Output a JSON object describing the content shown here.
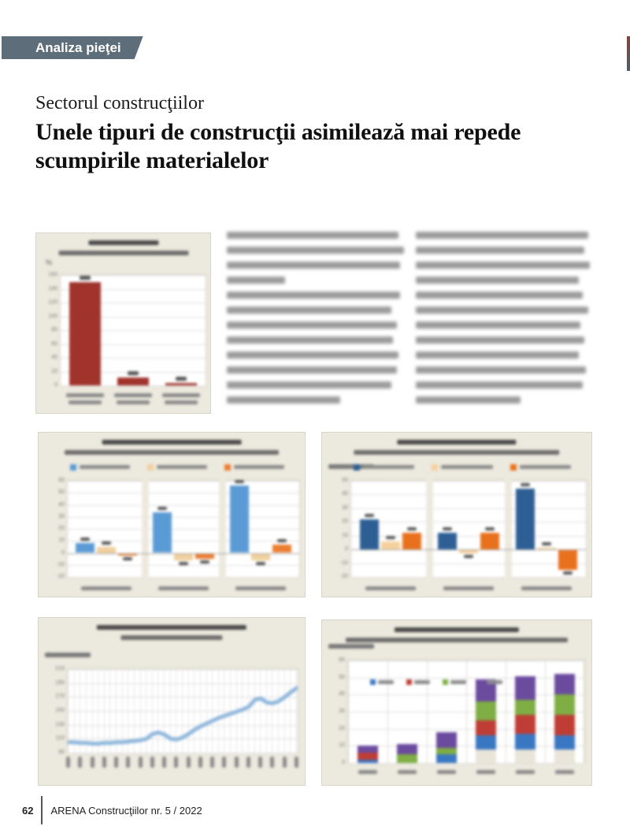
{
  "header": {
    "badge_label": "Analiza pieţei",
    "badge_bg": "#5d6e7a",
    "edge_marker_color": "#6a4a44"
  },
  "article": {
    "kicker": "Sectorul construcţiilor",
    "title": "Unele tipuri de construcţii asimilează mai repede scumpirile materialelor",
    "body_note": "two columns of body text are blurred/illegible in the source image"
  },
  "footer": {
    "page_number": "62",
    "magazine": "ARENA Construcţiilor nr. 5 / 2022"
  },
  "chart_data": [
    {
      "id": "construction-works-total",
      "type": "bar",
      "note": "title, category and data labels blurred/illegible; values estimated from gridlines",
      "ylabel": "%",
      "ylim": [
        0,
        160
      ],
      "yticks": [
        0,
        20,
        40,
        60,
        80,
        100,
        120,
        140,
        160
      ],
      "categories": [
        "",
        "",
        ""
      ],
      "values": [
        150,
        11,
        3
      ],
      "bar_color": "#a0332c",
      "card_bg": "#ece9de"
    },
    {
      "id": "grouped-bar-left",
      "type": "bar",
      "grouped": true,
      "note": "3 groups x 3 series; legend and labels blurred/illegible; values estimated",
      "ylim": [
        -20,
        60
      ],
      "yticks": [
        -20,
        -10,
        0,
        10,
        20,
        30,
        40,
        50,
        60
      ],
      "categories": [
        "",
        "",
        ""
      ],
      "series": [
        {
          "name": "",
          "color": "#5b9bd5",
          "values": [
            8,
            34,
            56
          ]
        },
        {
          "name": "",
          "color": "#f0d09e",
          "values": [
            5,
            -6,
            -6
          ]
        },
        {
          "name": "",
          "color": "#ed7d31",
          "values": [
            -2,
            -5,
            7
          ]
        }
      ],
      "legend_position": "top"
    },
    {
      "id": "grouped-bar-right",
      "type": "bar",
      "grouped": true,
      "note": "3 groups x 3 series; legend and labels blurred/illegible; values estimated",
      "ylabel": "%",
      "ylim": [
        -20,
        50
      ],
      "yticks": [
        -20,
        -10,
        0,
        10,
        20,
        30,
        40,
        50
      ],
      "categories": [
        "",
        "",
        ""
      ],
      "series": [
        {
          "name": "",
          "color": "#2e5f94",
          "values": [
            22,
            12,
            44
          ]
        },
        {
          "name": "",
          "color": "#f6d09c",
          "values": [
            6,
            -3,
            1
          ]
        },
        {
          "name": "",
          "color": "#e8711e",
          "values": [
            12,
            12,
            -15
          ]
        }
      ],
      "legend_position": "top"
    },
    {
      "id": "cost-index-line",
      "type": "line",
      "note": "monthly index line; axis labels rotated and blurred/illegible; values estimated",
      "ylim": [
        90,
        210
      ],
      "yticks": [
        90,
        110,
        130,
        150,
        170,
        190,
        210
      ],
      "line_color": "#8fb7dc",
      "values": [
        105,
        105,
        104,
        104,
        103,
        103,
        104,
        104,
        105,
        105,
        106,
        107,
        108,
        110,
        117,
        119,
        116,
        110,
        109,
        112,
        117,
        123,
        128,
        132,
        136,
        140,
        143,
        146,
        149,
        152,
        156,
        166,
        168,
        162,
        161,
        164,
        170,
        177,
        183
      ]
    },
    {
      "id": "stacked-bar-years",
      "type": "bar",
      "stacked": true,
      "note": "6 yearly stacked bars, 4-entry legend inside plot; labels blurred/illegible; values estimated",
      "ylim": [
        0,
        60
      ],
      "yticks": [
        0,
        10,
        20,
        30,
        40,
        50,
        60
      ],
      "categories": [
        "",
        "",
        "",
        "",
        "",
        ""
      ],
      "series": [
        {
          "name": "",
          "color": "#e9e5d9",
          "values": [
            0,
            0,
            0,
            8,
            8,
            8
          ]
        },
        {
          "name": "",
          "color": "#3a77c2",
          "values": [
            2,
            0,
            5,
            8,
            9,
            8
          ]
        },
        {
          "name": "",
          "color": "#bf3d35",
          "values": [
            4,
            0,
            0,
            9,
            11,
            12
          ]
        },
        {
          "name": "",
          "color": "#7fae44",
          "values": [
            0,
            5,
            4,
            11,
            9,
            12
          ]
        },
        {
          "name": "",
          "color": "#6b4b9e",
          "values": [
            4,
            6,
            9,
            13,
            14,
            12
          ]
        }
      ],
      "legend_visible_entries": 4
    }
  ]
}
